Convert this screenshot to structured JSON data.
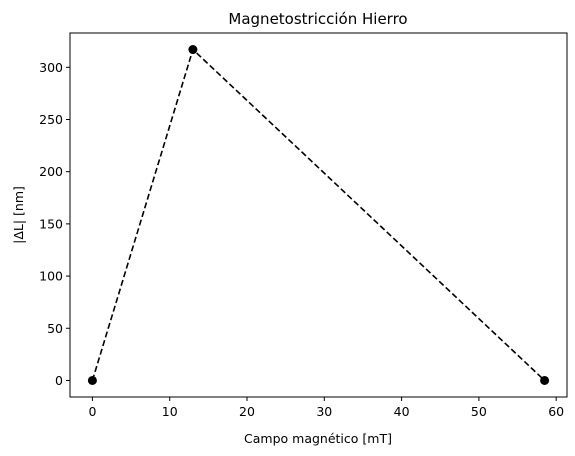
{
  "chart_data": {
    "type": "line",
    "title": "Magnetostricción Hierro",
    "xlabel": "Campo magnético [mT]",
    "ylabel": "|ΔL| [nm]",
    "x": [
      0,
      13,
      58.5
    ],
    "series": [
      {
        "values": [
          0,
          317,
          0
        ],
        "color": "#000000",
        "line_style": "dashed",
        "marker": "circle"
      }
    ],
    "xlim": [
      -2.9,
      61.4
    ],
    "ylim": [
      -15.85,
      332.85
    ],
    "xticks": [
      0,
      10,
      20,
      30,
      40,
      50,
      60
    ],
    "yticks": [
      0,
      50,
      100,
      150,
      200,
      250,
      300
    ],
    "grid": false
  }
}
